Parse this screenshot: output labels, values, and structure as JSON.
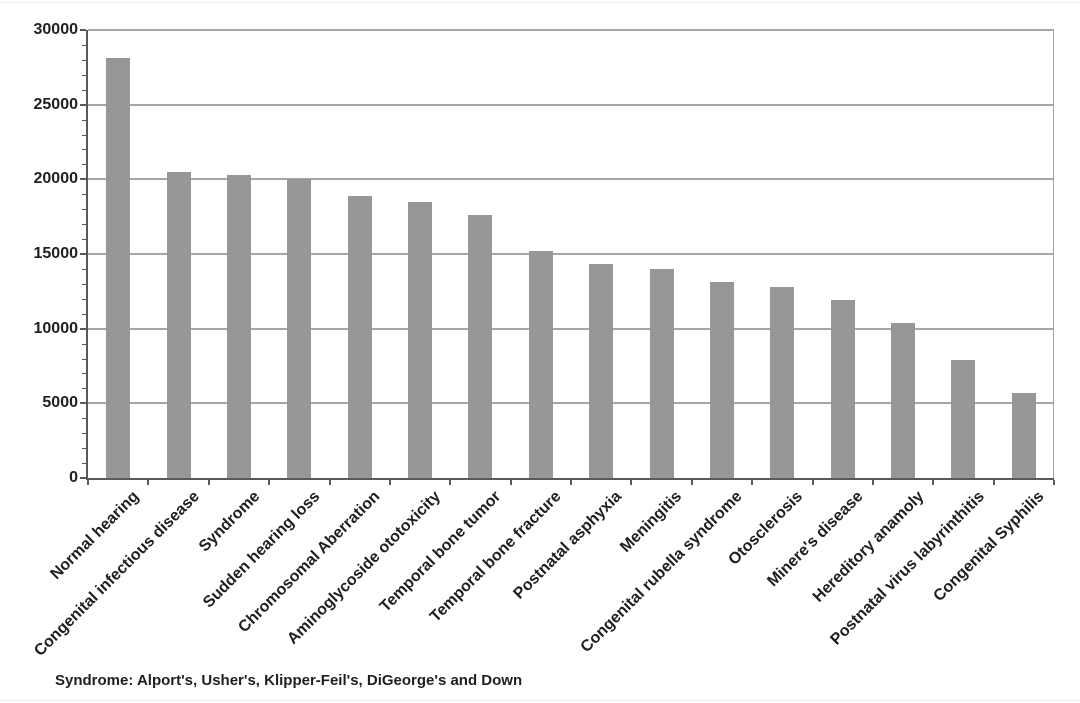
{
  "page": {
    "background_color": "#ffffff"
  },
  "chart_data": {
    "type": "bar",
    "title": "",
    "xlabel": "",
    "ylabel": "",
    "categories": [
      "Normal hearing",
      "Congenital infectious disease",
      "Syndrome",
      "Sudden hearing loss",
      "Chromosomal Aberration",
      "Aminoglycoside ototoxicity",
      "Temporal bone tumor",
      "Temporal bone fracture",
      "Postnatal asphyxia",
      "Meningitis",
      "Congenital rubella syndrome",
      "Otosclerosis",
      "Minere's disease",
      "Hereditory anamoly",
      "Postnatal virus labyrinthitis",
      "Congenital Syphilis"
    ],
    "values": [
      28100,
      20500,
      20300,
      20000,
      18900,
      18500,
      17600,
      15200,
      14300,
      14000,
      13100,
      12800,
      11900,
      10400,
      7900,
      5700
    ],
    "ylim": [
      0,
      30000
    ],
    "yticks": [
      0,
      5000,
      10000,
      15000,
      20000,
      25000,
      30000
    ],
    "minor_tick_interval": 1000,
    "grid": "horizontal-major",
    "legend": "none",
    "x_label_rotation_deg": 45,
    "bar_color": "#979797",
    "gridline_color": "#a6a6a6",
    "axis_color": "#595959",
    "text_color": "#1f1f1f"
  },
  "footnote": "Syndrome: Alport's, Usher's, Klipper-Feil's, DiGeorge's and Down"
}
